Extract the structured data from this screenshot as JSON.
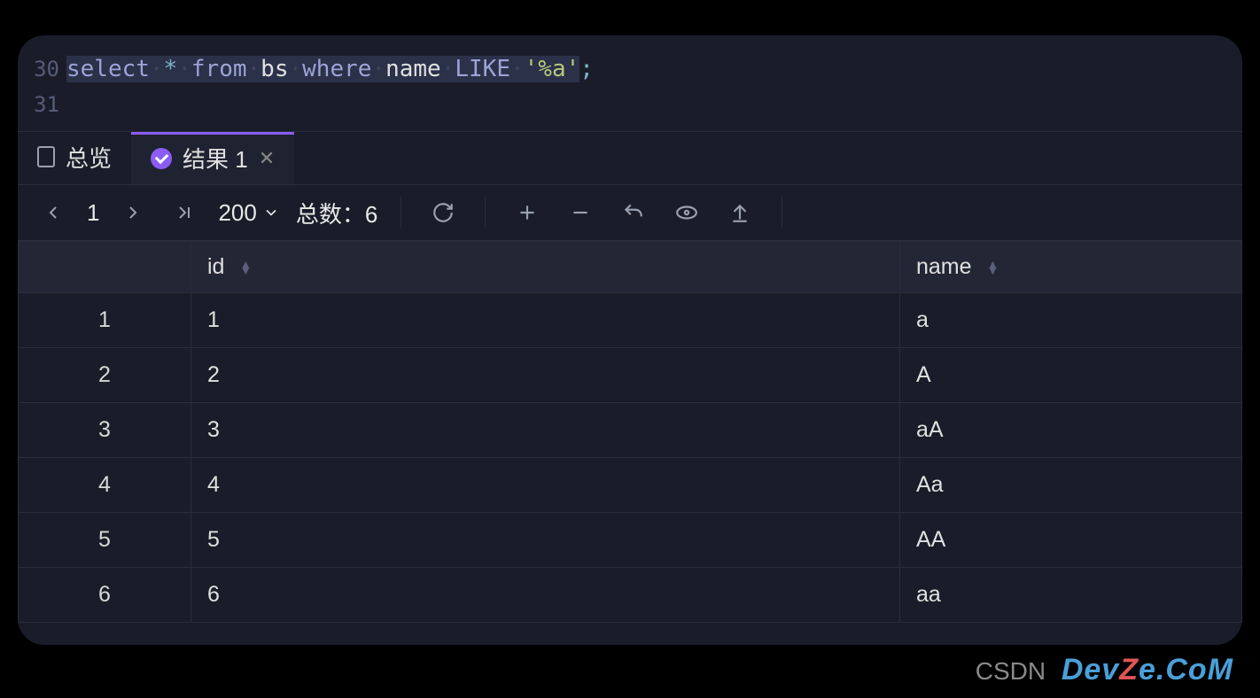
{
  "editor": {
    "lines": [
      {
        "num": "30",
        "tokens": [
          {
            "t": "select",
            "c": "kw"
          },
          {
            "t": "·",
            "c": "dot"
          },
          {
            "t": "*",
            "c": "op"
          },
          {
            "t": "·",
            "c": "dot"
          },
          {
            "t": "from",
            "c": "kw"
          },
          {
            "t": "·",
            "c": "dot"
          },
          {
            "t": "bs",
            "c": "id"
          },
          {
            "t": "·",
            "c": "dot"
          },
          {
            "t": "where",
            "c": "kw"
          },
          {
            "t": "·",
            "c": "dot"
          },
          {
            "t": "name",
            "c": "id"
          },
          {
            "t": "·",
            "c": "dot"
          },
          {
            "t": "LIKE",
            "c": "kw"
          },
          {
            "t": "·",
            "c": "dot"
          },
          {
            "t": "'%a'",
            "c": "str"
          }
        ],
        "tail": ";",
        "selected": true
      },
      {
        "num": "31",
        "tokens": [],
        "tail": "",
        "selected": false
      }
    ]
  },
  "tabs": {
    "overview_label": "总览",
    "result_label": "结果 1"
  },
  "toolbar": {
    "page": "1",
    "limit": "200",
    "total_label": "总数：",
    "total_value": "6"
  },
  "table": {
    "columns": [
      "id",
      "name"
    ],
    "rows": [
      {
        "n": "1",
        "id": "1",
        "name": "a"
      },
      {
        "n": "2",
        "id": "2",
        "name": "A"
      },
      {
        "n": "3",
        "id": "3",
        "name": "aA"
      },
      {
        "n": "4",
        "id": "4",
        "name": "Aa"
      },
      {
        "n": "5",
        "id": "5",
        "name": "AA"
      },
      {
        "n": "6",
        "id": "6",
        "name": "aa"
      }
    ]
  },
  "watermark": {
    "prefix": "CSDN",
    "brand_pre": "Dev",
    "brand_z": "Z",
    "brand_post": "e.CoM"
  },
  "colors": {
    "bg": "#1a1d29",
    "header_bg": "#232635",
    "border": "#2a2d3a",
    "text": "#e0e0e0",
    "keyword": "#9ca3d4",
    "string": "#b8c97a",
    "accent": "#8b5cf6"
  }
}
